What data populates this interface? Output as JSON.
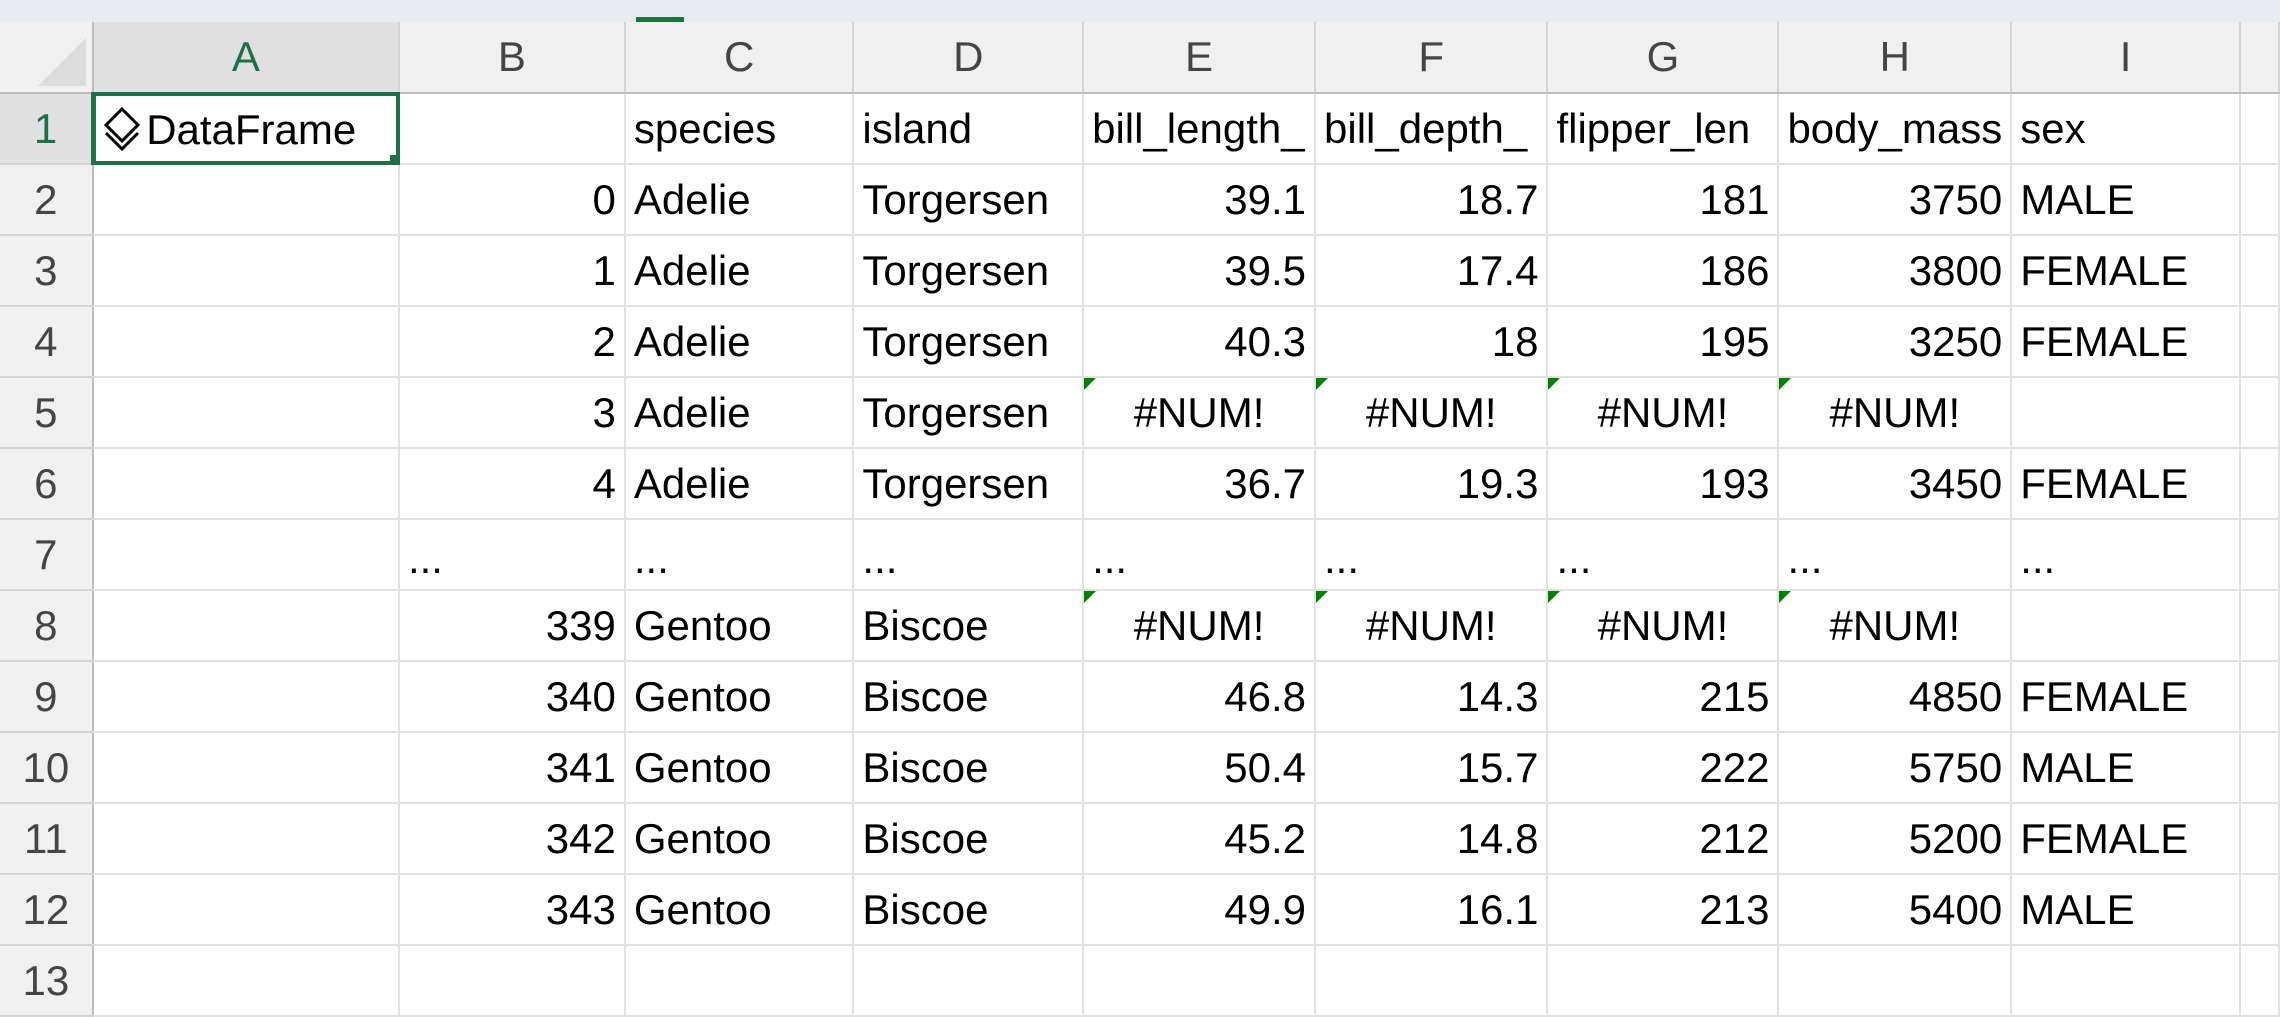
{
  "columns": [
    "A",
    "B",
    "C",
    "D",
    "E",
    "F",
    "G",
    "H",
    "I",
    ""
  ],
  "selected_cell": "A1",
  "accent_color": "#1e7145",
  "error_indicator_color": "#008000",
  "header_row": {
    "row": "1",
    "a": "DataFrame",
    "a_icon": "layers-icon",
    "b": "",
    "c": "species",
    "d": "island",
    "e": "bill_length_",
    "f": "bill_depth_",
    "g": "flipper_len",
    "h": "body_mass",
    "i": "sex"
  },
  "rows": [
    {
      "row": "2",
      "idx": "0",
      "species": "Adelie",
      "island": "Torgersen",
      "bill_length": "39.1",
      "bill_depth": "18.7",
      "flipper": "181",
      "mass": "3750",
      "sex": "MALE"
    },
    {
      "row": "3",
      "idx": "1",
      "species": "Adelie",
      "island": "Torgersen",
      "bill_length": "39.5",
      "bill_depth": "17.4",
      "flipper": "186",
      "mass": "3800",
      "sex": "FEMALE"
    },
    {
      "row": "4",
      "idx": "2",
      "species": "Adelie",
      "island": "Torgersen",
      "bill_length": "40.3",
      "bill_depth": "18",
      "flipper": "195",
      "mass": "3250",
      "sex": "FEMALE"
    },
    {
      "row": "5",
      "idx": "3",
      "species": "Adelie",
      "island": "Torgersen",
      "bill_length": "#NUM!",
      "bill_depth": "#NUM!",
      "flipper": "#NUM!",
      "mass": "#NUM!",
      "sex": ""
    },
    {
      "row": "6",
      "idx": "4",
      "species": "Adelie",
      "island": "Torgersen",
      "bill_length": "36.7",
      "bill_depth": "19.3",
      "flipper": "193",
      "mass": "3450",
      "sex": "FEMALE"
    },
    {
      "row": "7",
      "idx": "...",
      "species": "...",
      "island": "...",
      "bill_length": "...",
      "bill_depth": "...",
      "flipper": "...",
      "mass": "...",
      "sex": "..."
    },
    {
      "row": "8",
      "idx": "339",
      "species": "Gentoo",
      "island": "Biscoe",
      "bill_length": "#NUM!",
      "bill_depth": "#NUM!",
      "flipper": "#NUM!",
      "mass": "#NUM!",
      "sex": ""
    },
    {
      "row": "9",
      "idx": "340",
      "species": "Gentoo",
      "island": "Biscoe",
      "bill_length": "46.8",
      "bill_depth": "14.3",
      "flipper": "215",
      "mass": "4850",
      "sex": "FEMALE"
    },
    {
      "row": "10",
      "idx": "341",
      "species": "Gentoo",
      "island": "Biscoe",
      "bill_length": "50.4",
      "bill_depth": "15.7",
      "flipper": "222",
      "mass": "5750",
      "sex": "MALE"
    },
    {
      "row": "11",
      "idx": "342",
      "species": "Gentoo",
      "island": "Biscoe",
      "bill_length": "45.2",
      "bill_depth": "14.8",
      "flipper": "212",
      "mass": "5200",
      "sex": "FEMALE"
    },
    {
      "row": "12",
      "idx": "343",
      "species": "Gentoo",
      "island": "Biscoe",
      "bill_length": "49.9",
      "bill_depth": "16.1",
      "flipper": "213",
      "mass": "5400",
      "sex": "MALE"
    }
  ],
  "last_row": "13"
}
